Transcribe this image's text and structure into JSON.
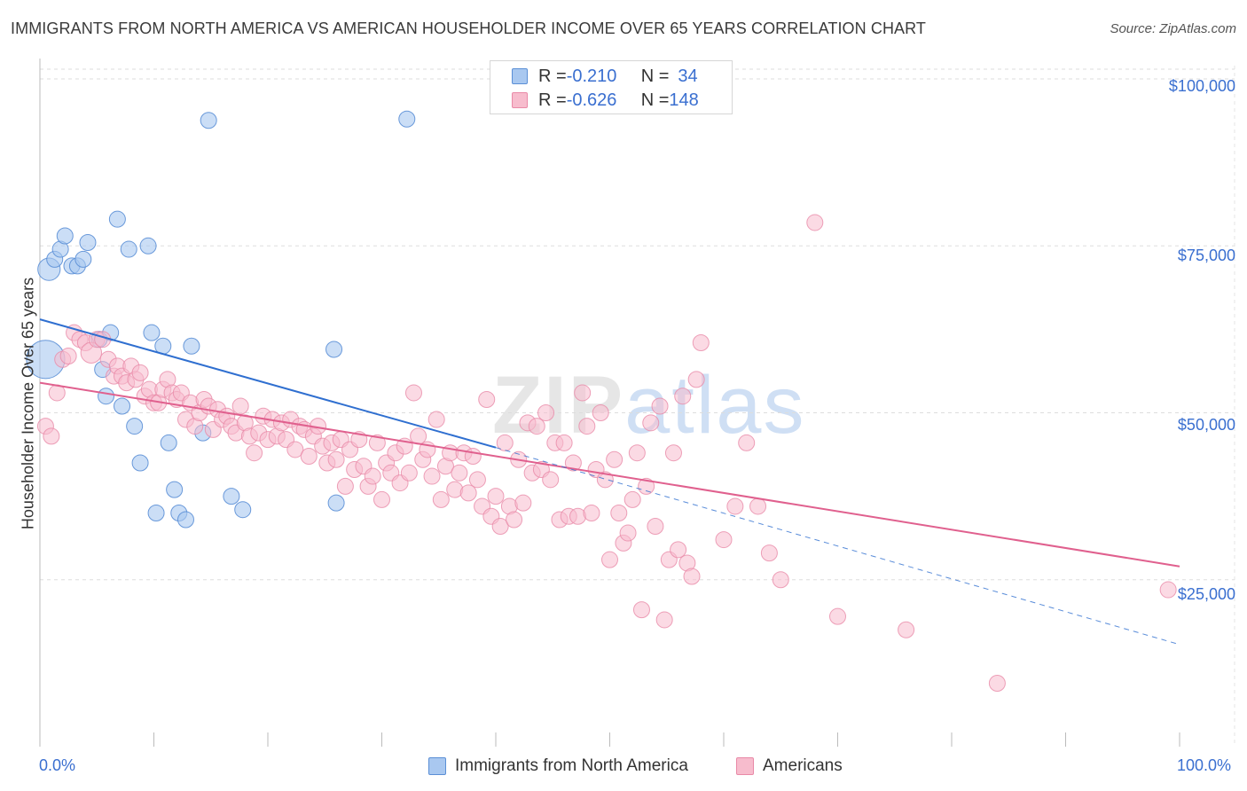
{
  "title": "IMMIGRANTS FROM NORTH AMERICA VS AMERICAN HOUSEHOLDER INCOME OVER 65 YEARS CORRELATION CHART",
  "source": "Source: ZipAtlas.com",
  "watermark": {
    "zip": "ZIP",
    "atlas": "atlas"
  },
  "legend": {
    "series1": {
      "r_label": "R = ",
      "r_value": "-0.210",
      "n_label": "N = ",
      "n_value": "34"
    },
    "series2": {
      "r_label": "R = ",
      "r_value": "-0.626",
      "n_label": "N = ",
      "n_value": "148"
    }
  },
  "colors": {
    "blue_fill": "#a9c8f0",
    "blue_stroke": "#5b8fd6",
    "blue_line": "#2f6fd0",
    "pink_fill": "#f7bccd",
    "pink_stroke": "#e989a7",
    "pink_line": "#e0608e",
    "axis_text": "#3a6fd0",
    "grid": "#dddddd"
  },
  "chart_data": {
    "type": "scatter",
    "title": "IMMIGRANTS FROM NORTH AMERICA VS AMERICAN HOUSEHOLDER INCOME OVER 65 YEARS CORRELATION CHART",
    "xlabel": "",
    "ylabel": "Householder Income Over 65 years",
    "xlim": [
      0,
      100
    ],
    "ylim": [
      0,
      102000
    ],
    "x_tick_labels": [
      "0.0%",
      "100.0%"
    ],
    "y_ticks": [
      25000,
      50000,
      75000,
      100000
    ],
    "y_tick_labels": [
      "$25,000",
      "$50,000",
      "$75,000",
      "$100,000"
    ],
    "grid": true,
    "series": [
      {
        "name": "Immigrants from North America",
        "color": "#a9c8f0",
        "trend": {
          "x0": 0,
          "y0": 64000,
          "x1": 40,
          "y1": 44800,
          "dash_to_x": 100,
          "dash_to_y": 15300
        },
        "points": [
          [
            0.5,
            58000,
            2.4
          ],
          [
            0.8,
            71500,
            1.4
          ],
          [
            1.3,
            73000,
            1
          ],
          [
            1.8,
            74500,
            1
          ],
          [
            2.2,
            76500,
            1
          ],
          [
            2.8,
            72000,
            1
          ],
          [
            3.3,
            72000,
            1
          ],
          [
            3.8,
            73000,
            1
          ],
          [
            4.2,
            75500,
            1
          ],
          [
            5.2,
            61000,
            1
          ],
          [
            5.5,
            56500,
            1
          ],
          [
            5.8,
            52500,
            1
          ],
          [
            6.2,
            62000,
            1
          ],
          [
            6.8,
            79000,
            1
          ],
          [
            7.2,
            51000,
            1
          ],
          [
            7.8,
            74500,
            1
          ],
          [
            8.3,
            48000,
            1
          ],
          [
            8.8,
            42500,
            1
          ],
          [
            9.5,
            75000,
            1
          ],
          [
            9.8,
            62000,
            1
          ],
          [
            10.2,
            35000,
            1
          ],
          [
            10.8,
            60000,
            1
          ],
          [
            11.3,
            45500,
            1
          ],
          [
            11.8,
            38500,
            1
          ],
          [
            12.2,
            35000,
            1
          ],
          [
            12.8,
            34000,
            1
          ],
          [
            13.3,
            60000,
            1
          ],
          [
            14.3,
            47000,
            1
          ],
          [
            14.8,
            93800,
            1
          ],
          [
            16.8,
            37500,
            1
          ],
          [
            17.8,
            35500,
            1
          ],
          [
            25.8,
            59500,
            1
          ],
          [
            26.0,
            36500,
            1
          ],
          [
            32.2,
            94000,
            1
          ]
        ]
      },
      {
        "name": "Americans",
        "color": "#f7bccd",
        "trend": {
          "x0": 0,
          "y0": 54500,
          "x1": 100,
          "y1": 27000
        },
        "points": [
          [
            0.5,
            48000,
            1
          ],
          [
            1.0,
            46500,
            1
          ],
          [
            1.5,
            53000,
            1
          ],
          [
            2.0,
            58000,
            1
          ],
          [
            2.5,
            58500,
            1
          ],
          [
            3.0,
            62000,
            1
          ],
          [
            3.5,
            61000,
            1
          ],
          [
            4.0,
            60500,
            1
          ],
          [
            4.5,
            59000,
            1.3
          ],
          [
            5.0,
            61000,
            1
          ],
          [
            5.5,
            61000,
            1
          ],
          [
            6.0,
            58000,
            1
          ],
          [
            6.5,
            55500,
            1
          ],
          [
            6.8,
            57000,
            1
          ],
          [
            7.2,
            55500,
            1
          ],
          [
            7.6,
            54500,
            1
          ],
          [
            8.0,
            57000,
            1
          ],
          [
            8.4,
            55000,
            1
          ],
          [
            8.8,
            56000,
            1
          ],
          [
            9.2,
            52500,
            1
          ],
          [
            9.6,
            53500,
            1
          ],
          [
            10.0,
            51500,
            1
          ],
          [
            10.4,
            51500,
            1
          ],
          [
            10.8,
            53500,
            1
          ],
          [
            11.2,
            55000,
            1
          ],
          [
            11.6,
            53000,
            1
          ],
          [
            12.0,
            52000,
            1
          ],
          [
            12.4,
            53000,
            1
          ],
          [
            12.8,
            49000,
            1
          ],
          [
            13.2,
            51500,
            1
          ],
          [
            13.6,
            48000,
            1
          ],
          [
            14.0,
            50000,
            1
          ],
          [
            14.4,
            52000,
            1
          ],
          [
            14.8,
            51000,
            1
          ],
          [
            15.2,
            47500,
            1
          ],
          [
            15.6,
            50500,
            1
          ],
          [
            16.0,
            49000,
            1
          ],
          [
            16.4,
            49500,
            1
          ],
          [
            16.8,
            48000,
            1
          ],
          [
            17.2,
            47000,
            1
          ],
          [
            17.6,
            51000,
            1
          ],
          [
            18.0,
            48500,
            1
          ],
          [
            18.4,
            46500,
            1
          ],
          [
            18.8,
            44000,
            1
          ],
          [
            19.2,
            47000,
            1
          ],
          [
            19.6,
            49500,
            1
          ],
          [
            20.0,
            46000,
            1
          ],
          [
            20.4,
            49000,
            1
          ],
          [
            20.8,
            46500,
            1
          ],
          [
            21.2,
            48500,
            1
          ],
          [
            21.6,
            46000,
            1
          ],
          [
            22.0,
            49000,
            1
          ],
          [
            22.4,
            44500,
            1
          ],
          [
            22.8,
            48000,
            1
          ],
          [
            23.2,
            47500,
            1
          ],
          [
            23.6,
            43500,
            1
          ],
          [
            24.0,
            46500,
            1
          ],
          [
            24.4,
            48000,
            1
          ],
          [
            24.8,
            45000,
            1
          ],
          [
            25.2,
            42500,
            1
          ],
          [
            25.6,
            45500,
            1
          ],
          [
            26.0,
            43000,
            1
          ],
          [
            26.4,
            46000,
            1
          ],
          [
            26.8,
            39000,
            1
          ],
          [
            27.2,
            44500,
            1
          ],
          [
            27.6,
            41500,
            1
          ],
          [
            28.0,
            46000,
            1
          ],
          [
            28.4,
            42000,
            1
          ],
          [
            28.8,
            39000,
            1
          ],
          [
            29.2,
            40500,
            1
          ],
          [
            29.6,
            45500,
            1
          ],
          [
            30.0,
            37000,
            1
          ],
          [
            30.4,
            42500,
            1
          ],
          [
            30.8,
            41000,
            1
          ],
          [
            31.2,
            44000,
            1
          ],
          [
            31.6,
            39500,
            1
          ],
          [
            32.0,
            45000,
            1
          ],
          [
            32.4,
            41000,
            1
          ],
          [
            32.8,
            53000,
            1
          ],
          [
            33.2,
            46500,
            1
          ],
          [
            33.6,
            43000,
            1
          ],
          [
            34.0,
            44500,
            1
          ],
          [
            34.4,
            40500,
            1
          ],
          [
            34.8,
            49000,
            1
          ],
          [
            35.2,
            37000,
            1
          ],
          [
            35.6,
            42000,
            1
          ],
          [
            36.0,
            44000,
            1
          ],
          [
            36.4,
            38500,
            1
          ],
          [
            36.8,
            41000,
            1
          ],
          [
            37.2,
            44000,
            1
          ],
          [
            37.6,
            38000,
            1
          ],
          [
            38.0,
            43500,
            1
          ],
          [
            38.4,
            40000,
            1
          ],
          [
            38.8,
            36000,
            1
          ],
          [
            39.2,
            52000,
            1
          ],
          [
            39.6,
            34500,
            1
          ],
          [
            40.0,
            37500,
            1
          ],
          [
            40.4,
            33000,
            1
          ],
          [
            40.8,
            45500,
            1
          ],
          [
            41.2,
            36000,
            1
          ],
          [
            41.6,
            34000,
            1
          ],
          [
            42.0,
            43000,
            1
          ],
          [
            42.4,
            36500,
            1
          ],
          [
            42.8,
            48500,
            1
          ],
          [
            43.2,
            41000,
            1
          ],
          [
            43.6,
            48000,
            1
          ],
          [
            44.0,
            41500,
            1
          ],
          [
            44.4,
            50000,
            1
          ],
          [
            44.8,
            40000,
            1
          ],
          [
            45.2,
            45500,
            1
          ],
          [
            45.6,
            34000,
            1
          ],
          [
            46.0,
            45500,
            1
          ],
          [
            46.4,
            34500,
            1
          ],
          [
            46.8,
            42500,
            1
          ],
          [
            47.2,
            34500,
            1
          ],
          [
            47.6,
            53000,
            1
          ],
          [
            48.0,
            48000,
            1
          ],
          [
            48.4,
            35000,
            1
          ],
          [
            48.8,
            41500,
            1
          ],
          [
            49.2,
            50000,
            1
          ],
          [
            49.6,
            40000,
            1
          ],
          [
            50.0,
            28000,
            1
          ],
          [
            50.4,
            43000,
            1
          ],
          [
            50.8,
            35000,
            1
          ],
          [
            51.2,
            30500,
            1
          ],
          [
            51.6,
            32000,
            1
          ],
          [
            52.0,
            37000,
            1
          ],
          [
            52.4,
            44000,
            1
          ],
          [
            52.8,
            20500,
            1
          ],
          [
            53.2,
            39000,
            1
          ],
          [
            53.6,
            48500,
            1
          ],
          [
            54.0,
            33000,
            1
          ],
          [
            54.4,
            51000,
            1
          ],
          [
            54.8,
            19000,
            1
          ],
          [
            55.2,
            28000,
            1
          ],
          [
            55.6,
            44000,
            1
          ],
          [
            56.0,
            29500,
            1
          ],
          [
            56.4,
            52500,
            1
          ],
          [
            56.8,
            27500,
            1
          ],
          [
            57.2,
            25500,
            1
          ],
          [
            57.6,
            55000,
            1
          ],
          [
            58.0,
            60500,
            1
          ],
          [
            60.0,
            31000,
            1
          ],
          [
            61.0,
            36000,
            1
          ],
          [
            62.0,
            45500,
            1
          ],
          [
            63.0,
            36000,
            1
          ],
          [
            64.0,
            29000,
            1
          ],
          [
            65.0,
            25000,
            1
          ],
          [
            68.0,
            78500,
            1
          ],
          [
            70.0,
            19500,
            1
          ],
          [
            76.0,
            17500,
            1
          ],
          [
            84.0,
            9500,
            1
          ],
          [
            99.0,
            23500,
            1
          ]
        ]
      }
    ]
  },
  "bottom_legend": {
    "series1": "Immigrants from North America",
    "series2": "Americans"
  }
}
